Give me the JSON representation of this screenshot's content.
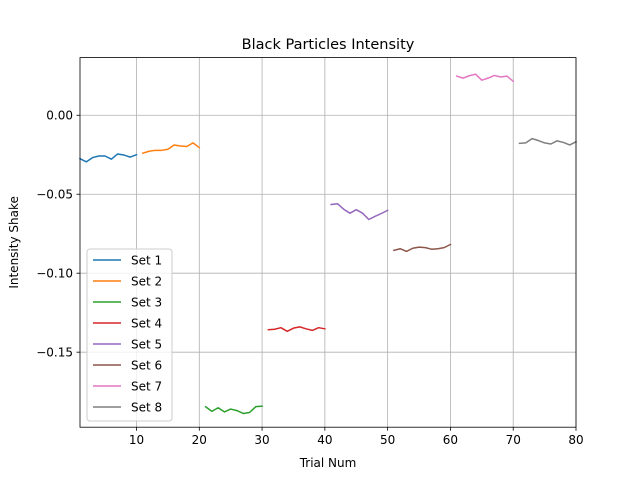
{
  "chart_data": {
    "type": "line",
    "title": "Black Particles Intensity",
    "xlabel": "Trial Num",
    "ylabel": "Intensity Shake",
    "xlim": [
      1,
      80
    ],
    "ylim": [
      -0.1975,
      0.0365
    ],
    "xticks": [
      10,
      20,
      30,
      40,
      50,
      60,
      70,
      80
    ],
    "yticks": [
      0.0,
      -0.05,
      -0.1,
      -0.15
    ],
    "ytick_labels": [
      "0.00",
      "−0.05",
      "−0.10",
      "−0.15"
    ],
    "grid": true,
    "legend_position": "lower-left",
    "series": [
      {
        "name": "Set 1",
        "color": "#1f77b4",
        "x": [
          1,
          2,
          3,
          4,
          5,
          6,
          7,
          8,
          9,
          10
        ],
        "y": [
          -0.0275,
          -0.0295,
          -0.0268,
          -0.0258,
          -0.0258,
          -0.0278,
          -0.0245,
          -0.0252,
          -0.0265,
          -0.025
        ]
      },
      {
        "name": "Set 2",
        "color": "#ff7f0e",
        "x": [
          11,
          12,
          13,
          14,
          15,
          16,
          17,
          18,
          19,
          20
        ],
        "y": [
          -0.024,
          -0.0228,
          -0.0222,
          -0.0222,
          -0.0215,
          -0.0188,
          -0.0195,
          -0.0198,
          -0.0175,
          -0.0205
        ]
      },
      {
        "name": "Set 3",
        "color": "#2ca02c",
        "x": [
          21,
          22,
          23,
          24,
          25,
          26,
          27,
          28,
          29,
          30
        ],
        "y": [
          -0.1845,
          -0.1875,
          -0.1852,
          -0.1878,
          -0.186,
          -0.187,
          -0.1888,
          -0.1882,
          -0.1845,
          -0.1842
        ]
      },
      {
        "name": "Set 4",
        "color": "#d62728",
        "x": [
          31,
          32,
          33,
          34,
          35,
          36,
          37,
          38,
          39,
          40
        ],
        "y": [
          -0.1358,
          -0.1355,
          -0.1345,
          -0.1368,
          -0.1348,
          -0.134,
          -0.1352,
          -0.1362,
          -0.1345,
          -0.1352
        ]
      },
      {
        "name": "Set 5",
        "color": "#9467bd",
        "x": [
          41,
          42,
          43,
          44,
          45,
          46,
          47,
          48,
          49,
          50
        ],
        "y": [
          -0.0565,
          -0.056,
          -0.0595,
          -0.062,
          -0.0598,
          -0.062,
          -0.066,
          -0.064,
          -0.0622,
          -0.0602
        ]
      },
      {
        "name": "Set 6",
        "color": "#8c564b",
        "x": [
          51,
          52,
          53,
          54,
          55,
          56,
          57,
          58,
          59,
          60
        ],
        "y": [
          -0.0855,
          -0.0845,
          -0.0862,
          -0.0842,
          -0.0835,
          -0.0838,
          -0.0848,
          -0.0845,
          -0.0838,
          -0.0818
        ]
      },
      {
        "name": "Set 7",
        "color": "#e377c2",
        "x": [
          61,
          62,
          63,
          64,
          65,
          66,
          67,
          68,
          69,
          70
        ],
        "y": [
          0.0248,
          0.0235,
          0.025,
          0.026,
          0.0222,
          0.0235,
          0.0252,
          0.0242,
          0.0248,
          0.0215
        ]
      },
      {
        "name": "Set 8",
        "color": "#7f7f7f",
        "x": [
          71,
          72,
          73,
          74,
          75,
          76,
          77,
          78,
          79,
          80
        ],
        "y": [
          -0.0178,
          -0.0175,
          -0.0148,
          -0.016,
          -0.0175,
          -0.0182,
          -0.0162,
          -0.0172,
          -0.0188,
          -0.0168
        ]
      }
    ]
  }
}
